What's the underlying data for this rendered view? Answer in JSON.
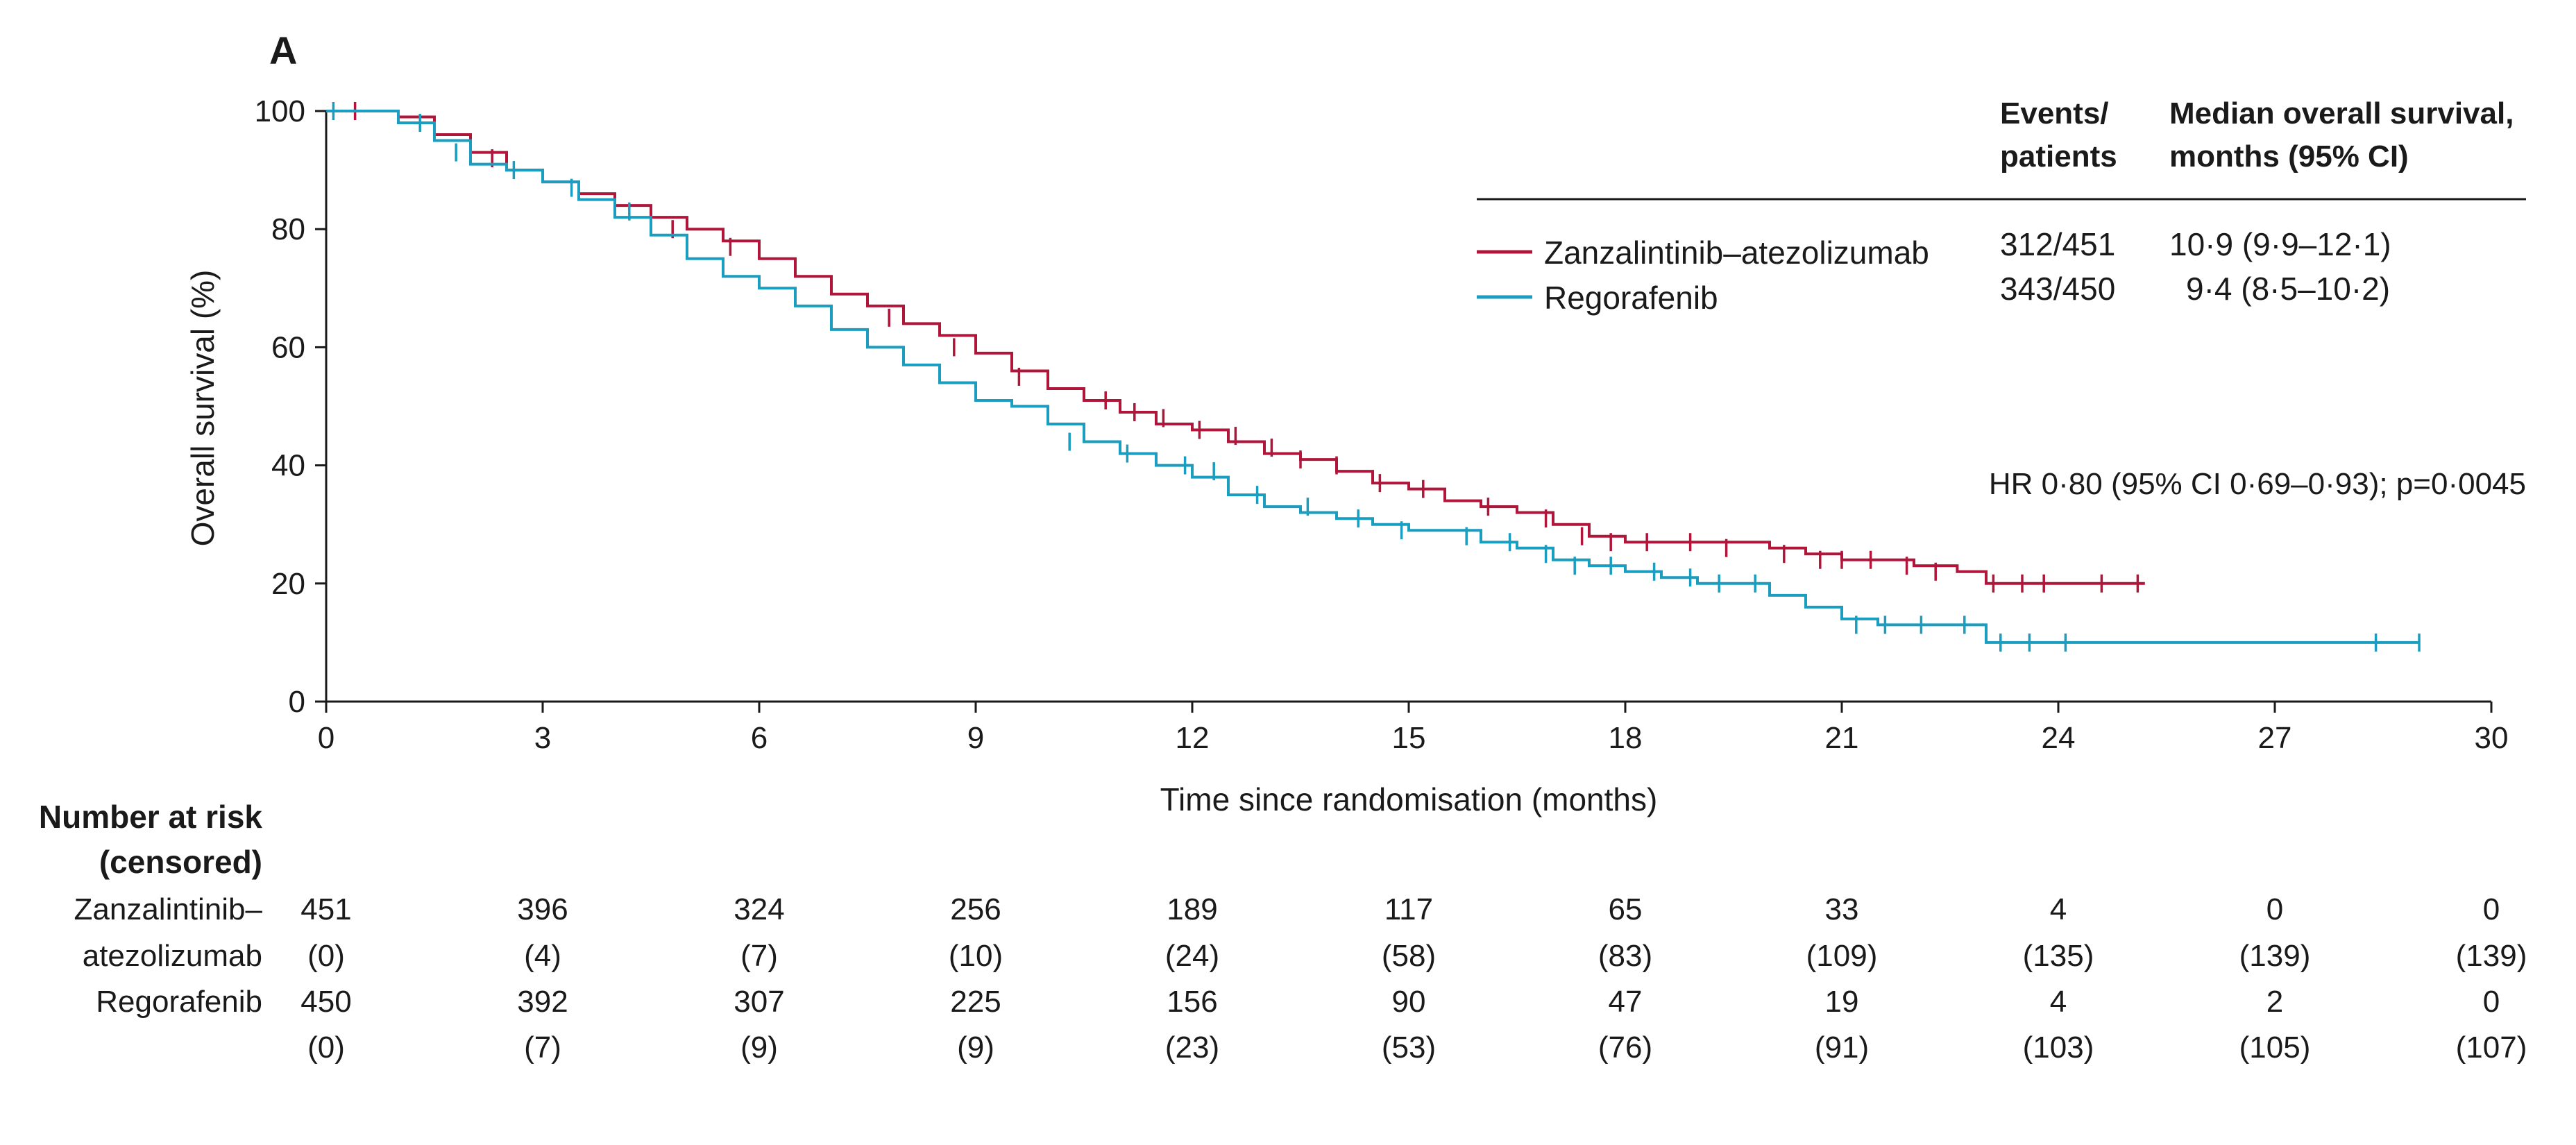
{
  "panel_label": "A",
  "colors": {
    "zanzalintinib": "#b0153a",
    "regorafenib": "#1a9dbe",
    "axis": "#1a1a1a"
  },
  "legend": {
    "header_events": [
      "Events/",
      "patients"
    ],
    "header_median": [
      "Median overall survival,",
      "months (95% CI)"
    ],
    "rows": [
      {
        "name": "Zanzalintinib–atezolizumab",
        "events": "312/451",
        "median": "10·9 (9·9–12·1)"
      },
      {
        "name": "Regorafenib",
        "events": "343/450",
        "median": "9·4 (8·5–10·2)"
      }
    ]
  },
  "hazard_ratio": "HR 0·80 (95% CI 0·69–0·93); p=0·0045",
  "risk_table": {
    "title": [
      "Number at risk",
      "(censored)"
    ],
    "arms": [
      {
        "label": [
          "Zanzalintinib–",
          "atezolizumab"
        ],
        "at_risk": [
          "451",
          "396",
          "324",
          "256",
          "189",
          "117",
          "65",
          "33",
          "4",
          "0",
          "0"
        ],
        "censored": [
          "(0)",
          "(4)",
          "(7)",
          "(10)",
          "(24)",
          "(58)",
          "(83)",
          "(109)",
          "(135)",
          "(139)",
          "(139)"
        ]
      },
      {
        "label": [
          "Regorafenib"
        ],
        "at_risk": [
          "450",
          "392",
          "307",
          "225",
          "156",
          "90",
          "47",
          "19",
          "4",
          "2",
          "0"
        ],
        "censored": [
          "(0)",
          "(7)",
          "(9)",
          "(9)",
          "(23)",
          "(53)",
          "(76)",
          "(91)",
          "(103)",
          "(105)",
          "(107)"
        ]
      }
    ]
  },
  "chart_data": {
    "type": "line",
    "subtype": "kaplan-meier-step",
    "xlabel": "Time since randomisation (months)",
    "ylabel": "Overall survival (%)",
    "xlim": [
      0,
      30
    ],
    "ylim": [
      0,
      100
    ],
    "xticks": [
      0,
      3,
      6,
      9,
      12,
      15,
      18,
      21,
      24,
      27,
      30
    ],
    "yticks": [
      0,
      20,
      40,
      60,
      80,
      100
    ],
    "grid": false,
    "legend_position": "top-right",
    "series": [
      {
        "name": "Zanzalintinib–atezolizumab",
        "color_key": "zanzalintinib",
        "x": [
          0,
          1.0,
          1.5,
          2.0,
          2.5,
          3.0,
          3.5,
          4.0,
          4.5,
          5.0,
          5.5,
          6.0,
          6.5,
          7.0,
          7.5,
          8.0,
          8.5,
          9.0,
          9.5,
          10.0,
          10.5,
          11.0,
          11.5,
          12.0,
          12.5,
          13.0,
          13.5,
          14.0,
          14.5,
          15.0,
          15.5,
          16.0,
          16.5,
          17.0,
          17.5,
          18.0,
          18.5,
          19.0,
          19.5,
          20.0,
          20.5,
          21.0,
          21.5,
          22.0,
          22.6,
          23.0,
          24.0,
          25.2
        ],
        "y": [
          100,
          99,
          96,
          93,
          90,
          88,
          86,
          84,
          82,
          80,
          78,
          75,
          72,
          69,
          67,
          64,
          62,
          59,
          56,
          53,
          51,
          49,
          47,
          46,
          44,
          42,
          41,
          39,
          37,
          36,
          34,
          33,
          32,
          30,
          28,
          27,
          27,
          27,
          27,
          26,
          25,
          24,
          24,
          23,
          22,
          20,
          20,
          20
        ],
        "censor_x": [
          0.4,
          2.3,
          4.8,
          5.6,
          7.8,
          8.7,
          9.6,
          10.8,
          11.2,
          11.6,
          12.1,
          12.6,
          13.1,
          13.5,
          14.0,
          14.6,
          15.2,
          16.1,
          16.9,
          17.4,
          17.8,
          18.3,
          18.9,
          19.4,
          20.2,
          20.7,
          21.0,
          21.4,
          21.9,
          22.3,
          23.1,
          23.5,
          23.8,
          24.6,
          25.1
        ],
        "censor_y": [
          100,
          92,
          80,
          77,
          65,
          60,
          55,
          51,
          49,
          48,
          46,
          45,
          43,
          41,
          40,
          37,
          36,
          33,
          31,
          28,
          27,
          27,
          27,
          26,
          25,
          24,
          24,
          24,
          23,
          22,
          20,
          20,
          20,
          20,
          20
        ]
      },
      {
        "name": "Regorafenib",
        "color_key": "regorafenib",
        "x": [
          0,
          1.0,
          1.5,
          2.0,
          2.5,
          3.0,
          3.5,
          4.0,
          4.5,
          5.0,
          5.5,
          6.0,
          6.5,
          7.0,
          7.5,
          8.0,
          8.5,
          9.0,
          9.5,
          10.0,
          10.5,
          11.0,
          11.5,
          12.0,
          12.5,
          13.0,
          13.5,
          14.0,
          14.5,
          15.0,
          15.5,
          16.0,
          16.5,
          17.0,
          17.5,
          18.0,
          18.5,
          19.0,
          19.5,
          20.0,
          20.5,
          21.0,
          21.5,
          22.0,
          22.5,
          23.0,
          24.0,
          26.0,
          29.0
        ],
        "y": [
          100,
          98,
          95,
          91,
          90,
          88,
          85,
          82,
          79,
          75,
          72,
          70,
          67,
          63,
          60,
          57,
          54,
          51,
          50,
          47,
          44,
          42,
          40,
          38,
          35,
          33,
          32,
          31,
          30,
          29,
          29,
          27,
          26,
          24,
          23,
          22,
          21,
          20,
          20,
          18,
          16,
          14,
          13,
          13,
          13,
          10,
          10,
          10,
          10
        ],
        "censor_x": [
          0.1,
          1.3,
          1.8,
          2.6,
          3.4,
          4.2,
          10.3,
          11.1,
          11.9,
          12.3,
          12.9,
          13.6,
          14.3,
          14.9,
          15.8,
          16.4,
          16.9,
          17.3,
          17.8,
          18.4,
          18.9,
          19.3,
          19.8,
          21.2,
          21.6,
          22.1,
          22.7,
          23.2,
          23.6,
          24.1,
          28.4,
          29.0
        ],
        "censor_y": [
          100,
          98,
          93,
          90,
          87,
          83,
          44,
          42,
          40,
          39,
          35,
          33,
          31,
          29,
          28,
          27,
          25,
          23,
          23,
          22,
          21,
          20,
          20,
          13,
          13,
          13,
          13,
          10,
          10,
          10,
          10,
          10
        ]
      }
    ]
  }
}
